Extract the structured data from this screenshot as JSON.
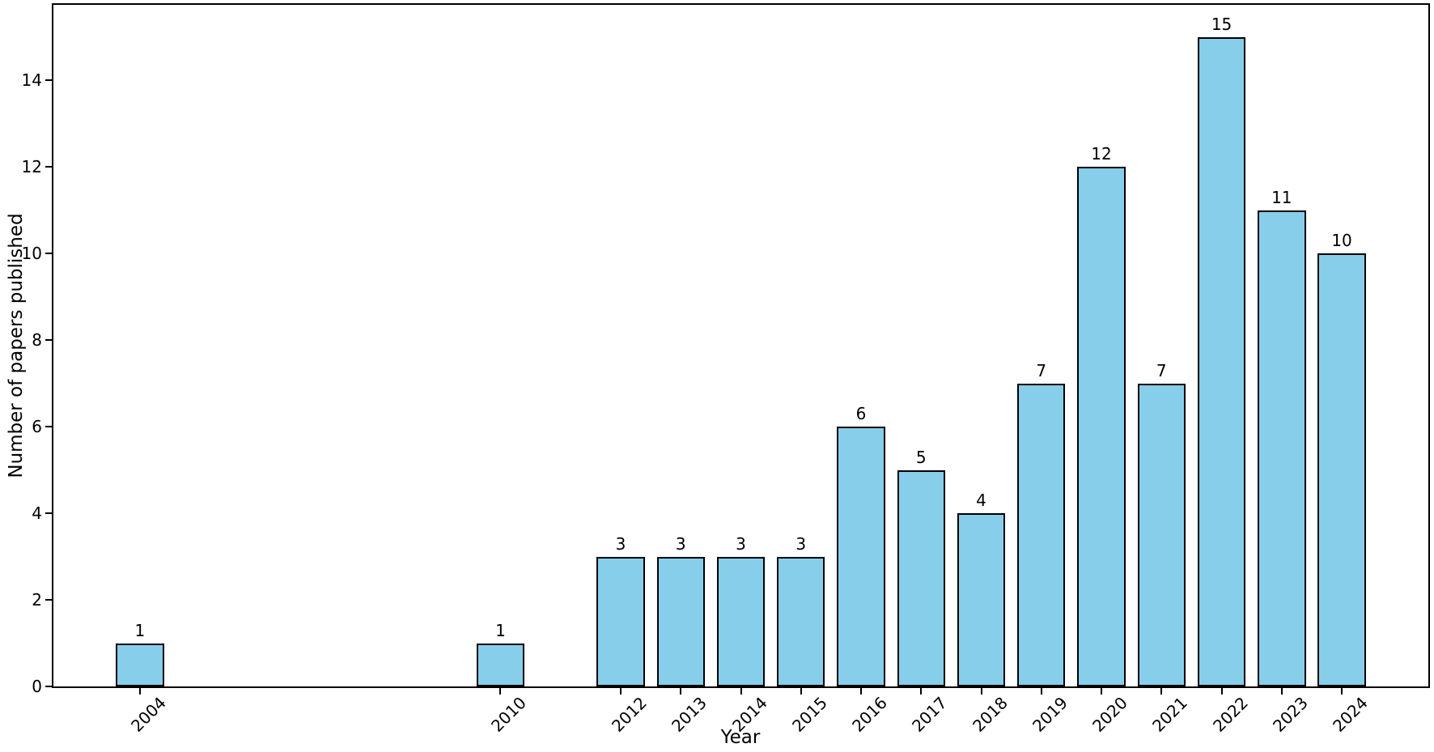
{
  "chart_data": {
    "type": "bar",
    "title": "",
    "xlabel": "Year",
    "ylabel": "Number of papers published",
    "categories": [
      2004,
      2010,
      2012,
      2013,
      2014,
      2015,
      2016,
      2017,
      2018,
      2019,
      2020,
      2021,
      2022,
      2023,
      2024
    ],
    "values": [
      1,
      1,
      3,
      3,
      3,
      3,
      6,
      5,
      4,
      7,
      12,
      7,
      15,
      11,
      10
    ],
    "bar_value_labels": [
      "1",
      "1",
      "3",
      "3",
      "3",
      "3",
      "6",
      "5",
      "4",
      "7",
      "12",
      "7",
      "15",
      "11",
      "10"
    ],
    "yticks": [
      0,
      2,
      4,
      6,
      8,
      10,
      12,
      14
    ],
    "ytick_labels": [
      "0",
      "2",
      "4",
      "6",
      "8",
      "10",
      "12",
      "14"
    ],
    "xlim": [
      2002.56,
      2025.44
    ],
    "ylim": [
      0,
      15.74
    ],
    "bar_width_years": 0.8,
    "x_tick_rotation_deg": 45,
    "grid": false,
    "legend": null,
    "colors": {
      "bar_fill": "#87CEEB",
      "bar_edge": "#000000",
      "spine": "#000000",
      "text": "#000000",
      "background": "#ffffff"
    }
  }
}
